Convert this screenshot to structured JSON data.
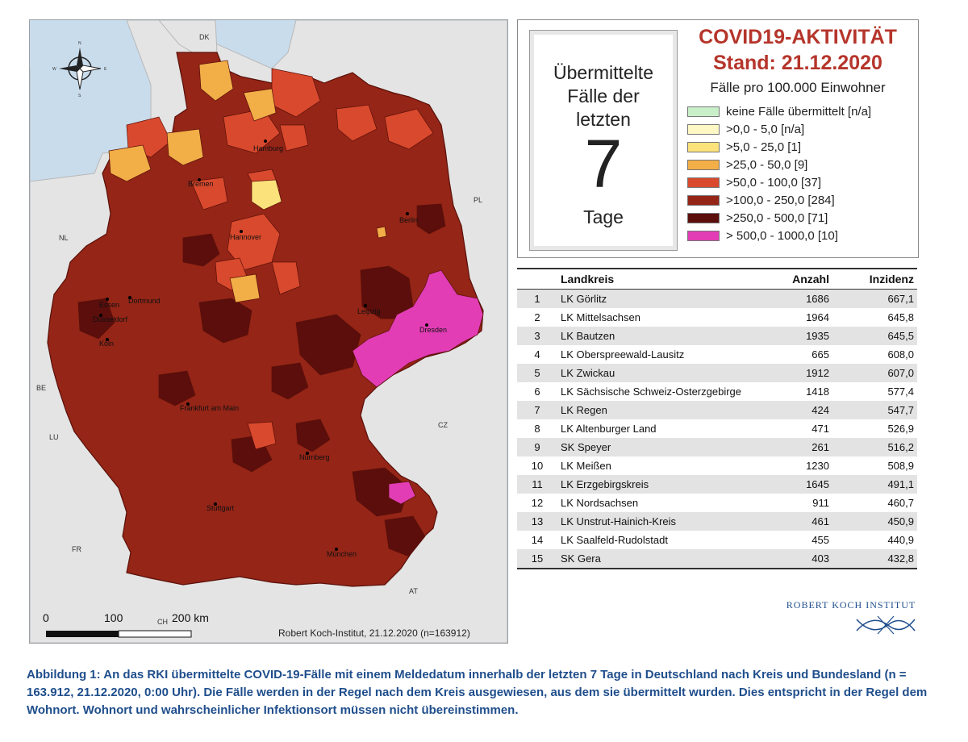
{
  "map": {
    "cities": [
      {
        "name": "Hamburg"
      },
      {
        "name": "Bremen"
      },
      {
        "name": "Berlin"
      },
      {
        "name": "Hannover"
      },
      {
        "name": "Essen"
      },
      {
        "name": "Dortmund"
      },
      {
        "name": "Düsseldorf"
      },
      {
        "name": "Köln"
      },
      {
        "name": "Leipzig"
      },
      {
        "name": "Dresden"
      },
      {
        "name": "Frankfurt am Main"
      },
      {
        "name": "Nürnberg"
      },
      {
        "name": "Stuttgart"
      },
      {
        "name": "München"
      }
    ],
    "countries": [
      "DK",
      "PL",
      "NL",
      "BE",
      "LU",
      "CZ",
      "FR",
      "CH",
      "AT"
    ],
    "compass_letters": [
      "N",
      "E",
      "S",
      "W"
    ],
    "scale": {
      "zero": "0",
      "mid": "100",
      "end": "200 km"
    },
    "credit": "Robert Koch-Institut, 21.12.2020 (n=163912)",
    "colors": {
      "sea": "#c9dcec",
      "neighbor": "#e4e4e4",
      "base": "#922518",
      "border": "#5a1009"
    }
  },
  "legend": {
    "days_heading": "Übermittelte\nFälle der\nletzten",
    "days_number": "7",
    "days_unit": "Tage",
    "title": "COVID19-AKTIVITÄT",
    "date": "Stand: 21.12.2020",
    "subtitle": "Fälle pro 100.000 Einwohner",
    "items": [
      {
        "label": "keine Fälle übermittelt [n/a]",
        "color": "#c9efc8"
      },
      {
        "label": ">0,0 - 5,0 [n/a]",
        "color": "#fdf8c4"
      },
      {
        "label": ">5,0 - 25,0 [1]",
        "color": "#fbe27a"
      },
      {
        "label": ">25,0 - 50,0 [9]",
        "color": "#f2ae47"
      },
      {
        "label": ">50,0 - 100,0 [37]",
        "color": "#d9492d"
      },
      {
        "label": ">100,0 - 250,0 [284]",
        "color": "#942517"
      },
      {
        "label": ">250,0 - 500,0 [71]",
        "color": "#5b0e0b"
      },
      {
        "label": "> 500,0 - 1000,0 [10]",
        "color": "#e23db5"
      }
    ]
  },
  "table": {
    "headers": {
      "rank": "",
      "name": "Landkreis",
      "count": "Anzahl",
      "incidence": "Inzidenz"
    },
    "rows": [
      {
        "rank": "1",
        "name": "LK Görlitz",
        "count": "1686",
        "incidence": "667,1"
      },
      {
        "rank": "2",
        "name": "LK Mittelsachsen",
        "count": "1964",
        "incidence": "645,8"
      },
      {
        "rank": "3",
        "name": "LK Bautzen",
        "count": "1935",
        "incidence": "645,5"
      },
      {
        "rank": "4",
        "name": "LK Oberspreewald-Lausitz",
        "count": "665",
        "incidence": "608,0"
      },
      {
        "rank": "5",
        "name": "LK Zwickau",
        "count": "1912",
        "incidence": "607,0"
      },
      {
        "rank": "6",
        "name": "LK Sächsische Schweiz-Osterzgebirge",
        "count": "1418",
        "incidence": "577,4"
      },
      {
        "rank": "7",
        "name": "LK Regen",
        "count": "424",
        "incidence": "547,7"
      },
      {
        "rank": "8",
        "name": "LK Altenburger Land",
        "count": "471",
        "incidence": "526,9"
      },
      {
        "rank": "9",
        "name": "SK Speyer",
        "count": "261",
        "incidence": "516,2"
      },
      {
        "rank": "10",
        "name": "LK Meißen",
        "count": "1230",
        "incidence": "508,9"
      },
      {
        "rank": "11",
        "name": "LK Erzgebirgskreis",
        "count": "1645",
        "incidence": "491,1"
      },
      {
        "rank": "12",
        "name": "LK Nordsachsen",
        "count": "911",
        "incidence": "460,7"
      },
      {
        "rank": "13",
        "name": "LK Unstrut-Hainich-Kreis",
        "count": "461",
        "incidence": "450,9"
      },
      {
        "rank": "14",
        "name": "LK Saalfeld-Rudolstadt",
        "count": "455",
        "incidence": "440,9"
      },
      {
        "rank": "15",
        "name": "SK Gera",
        "count": "403",
        "incidence": "432,8"
      }
    ]
  },
  "logo": {
    "name": "ROBERT KOCH INSTITUT",
    "color": "#1f4e8c"
  },
  "caption": "Abbildung 1: An das RKI übermittelte COVID-19-Fälle mit einem Meldedatum innerhalb der letzten 7 Tage in Deutschland nach Kreis und Bundesland (n = 163.912, 21.12.2020, 0:00 Uhr). Die Fälle werden in der Regel nach dem Kreis ausgewiesen, aus dem sie übermittelt wurden. Dies entspricht in der Regel dem Wohnort. Wohnort und wahrscheinlicher Infektionsort müssen nicht übereinstimmen."
}
